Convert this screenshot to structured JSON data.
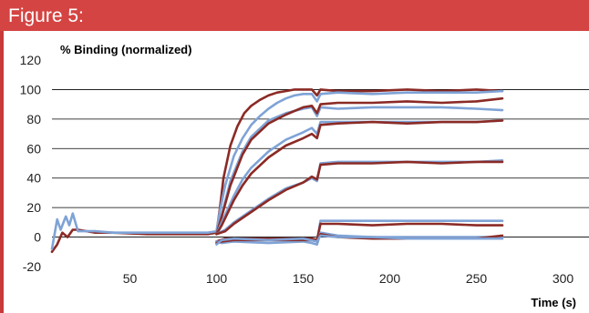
{
  "figure": {
    "title": "Figure 5:"
  },
  "colors": {
    "header_bg": "#d44442",
    "frame": "#c8393b",
    "series_dark": "#8b2a25",
    "series_light": "#7fa3d6",
    "grid": "#000000"
  },
  "chart_data": {
    "type": "line",
    "title": "",
    "ylabel": "% Binding (normalized)",
    "xlabel": "Time (s)",
    "xlim": [
      5,
      315
    ],
    "ylim": [
      -20,
      120
    ],
    "xticks": [
      "50",
      "100",
      "150",
      "200",
      "250",
      "300"
    ],
    "yticks": [
      "-20",
      "0",
      "20",
      "40",
      "60",
      "80",
      "100",
      "120"
    ],
    "grid": "horizontal",
    "legend": "none",
    "series": [
      {
        "color": "dark",
        "x": [
          5,
          8,
          11,
          14,
          17,
          20,
          30,
          40,
          60,
          80,
          95,
          100,
          102,
          104,
          108,
          112,
          116,
          120,
          125,
          130,
          135,
          140,
          145,
          150,
          155,
          158,
          160,
          170,
          190,
          210,
          230,
          250,
          265
        ],
        "y": [
          -10,
          -5,
          3,
          0,
          5,
          5,
          3,
          3,
          2,
          2,
          2,
          3,
          20,
          40,
          62,
          75,
          84,
          89,
          93,
          96,
          98,
          99,
          100,
          100,
          100,
          96,
          100,
          99,
          99,
          100,
          99,
          100,
          99
        ]
      },
      {
        "color": "light",
        "x": [
          5,
          8,
          10,
          13,
          15,
          17,
          20,
          30,
          40,
          60,
          80,
          95,
          100,
          102,
          105,
          110,
          115,
          120,
          125,
          130,
          135,
          140,
          145,
          150,
          155,
          158,
          160,
          170,
          190,
          210,
          230,
          250,
          265
        ],
        "y": [
          -8,
          12,
          5,
          14,
          8,
          16,
          4,
          4,
          3,
          3,
          3,
          3,
          4,
          18,
          35,
          55,
          67,
          76,
          82,
          87,
          91,
          94,
          96,
          97,
          97,
          92,
          97,
          98,
          97,
          98,
          98,
          98,
          99
        ]
      },
      {
        "color": "light",
        "x": [
          100,
          103,
          108,
          115,
          120,
          130,
          140,
          150,
          155,
          158,
          160,
          170,
          190,
          210,
          230,
          250,
          265
        ],
        "y": [
          2,
          15,
          38,
          58,
          68,
          79,
          84,
          87,
          88,
          82,
          88,
          87,
          88,
          88,
          88,
          87,
          86
        ]
      },
      {
        "color": "dark",
        "x": [
          100,
          103,
          108,
          115,
          120,
          130,
          140,
          150,
          155,
          158,
          160,
          170,
          190,
          210,
          230,
          250,
          265
        ],
        "y": [
          2,
          14,
          35,
          56,
          66,
          77,
          83,
          88,
          89,
          84,
          90,
          91,
          91,
          92,
          91,
          92,
          94
        ]
      },
      {
        "color": "light",
        "x": [
          100,
          103,
          110,
          115,
          120,
          130,
          140,
          150,
          155,
          158,
          160,
          170,
          190,
          210,
          230,
          250,
          265
        ],
        "y": [
          2,
          10,
          28,
          39,
          47,
          58,
          66,
          71,
          74,
          70,
          78,
          78,
          78,
          78,
          78,
          78,
          79
        ]
      },
      {
        "color": "dark",
        "x": [
          100,
          103,
          110,
          115,
          120,
          130,
          140,
          150,
          155,
          158,
          160,
          170,
          190,
          210,
          230,
          250,
          265
        ],
        "y": [
          2,
          8,
          25,
          35,
          43,
          54,
          62,
          67,
          70,
          67,
          76,
          77,
          78,
          77,
          78,
          78,
          79
        ]
      },
      {
        "color": "light",
        "x": [
          100,
          105,
          110,
          120,
          130,
          140,
          150,
          155,
          158,
          160,
          170,
          190,
          210,
          230,
          250,
          265
        ],
        "y": [
          2,
          5,
          10,
          18,
          26,
          33,
          37,
          40,
          38,
          50,
          51,
          51,
          51,
          51,
          51,
          52
        ]
      },
      {
        "color": "dark",
        "x": [
          100,
          105,
          110,
          120,
          130,
          140,
          150,
          155,
          158,
          160,
          170,
          190,
          210,
          230,
          250,
          265
        ],
        "y": [
          2,
          4,
          9,
          17,
          25,
          32,
          37,
          41,
          39,
          49,
          50,
          50,
          51,
          50,
          51,
          51
        ]
      },
      {
        "color": "light",
        "x": [
          100,
          105,
          120,
          140,
          155,
          158,
          160,
          170,
          190,
          210,
          230,
          250,
          265
        ],
        "y": [
          -3,
          -2,
          -2,
          -2,
          -2,
          -3,
          11,
          11,
          11,
          11,
          11,
          11,
          11
        ]
      },
      {
        "color": "dark",
        "x": [
          100,
          105,
          120,
          140,
          155,
          158,
          160,
          170,
          190,
          210,
          230,
          250,
          265
        ],
        "y": [
          -3,
          -1,
          -1,
          -1,
          -1,
          -2,
          9,
          9,
          8,
          9,
          9,
          8,
          8
        ]
      },
      {
        "color": "light",
        "x": [
          100,
          103,
          110,
          130,
          150,
          155,
          158,
          160,
          170,
          190,
          210,
          230,
          250,
          265
        ],
        "y": [
          -3,
          -4,
          -3,
          -4,
          -3,
          -4,
          -5,
          3,
          1,
          0,
          0,
          0,
          0,
          0
        ]
      },
      {
        "color": "dark",
        "x": [
          100,
          103,
          110,
          130,
          150,
          155,
          158,
          160,
          170,
          190,
          210,
          230,
          250,
          265
        ],
        "y": [
          -4,
          -3,
          -2,
          -2,
          -2,
          -2,
          -3,
          2,
          0,
          -1,
          -1,
          -1,
          -1,
          1
        ]
      },
      {
        "color": "light",
        "x": [
          100,
          103,
          110,
          130,
          150,
          158,
          160,
          170,
          190,
          210,
          230,
          250,
          265
        ],
        "y": [
          -5,
          -2,
          -1,
          -2,
          -1,
          -3,
          1,
          0,
          0,
          -1,
          -1,
          -1,
          -1
        ]
      }
    ]
  }
}
